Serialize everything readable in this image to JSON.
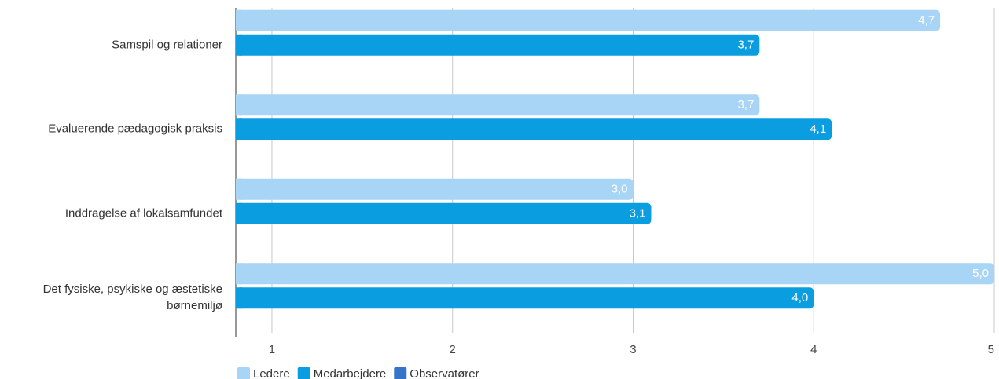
{
  "chart_data": {
    "type": "hbar",
    "categories": [
      "Samspil og relationer",
      "Evaluerende pædagogisk praksis",
      "Inddragelse af lokalsamfundet",
      "Det fysiske, psykiske og æstetiske børnemiljø"
    ],
    "series": [
      {
        "name": "Ledere",
        "color": "#a8d4f5",
        "values": [
          4.7,
          3.7,
          3.0,
          5.0
        ],
        "value_labels": [
          "4,7",
          "3,7",
          "3,0",
          "5,0"
        ]
      },
      {
        "name": "Medarbejdere",
        "color": "#0a9de0",
        "values": [
          3.7,
          4.1,
          3.1,
          4.0
        ],
        "value_labels": [
          "3,7",
          "4,1",
          "3,1",
          "4,0"
        ]
      },
      {
        "name": "Observatører",
        "color": "#3574c8",
        "values": [
          null,
          null,
          null,
          null
        ]
      }
    ],
    "xlim": [
      0.8,
      5
    ],
    "xticks": [
      1,
      2,
      3,
      4,
      5
    ],
    "grid": true
  }
}
